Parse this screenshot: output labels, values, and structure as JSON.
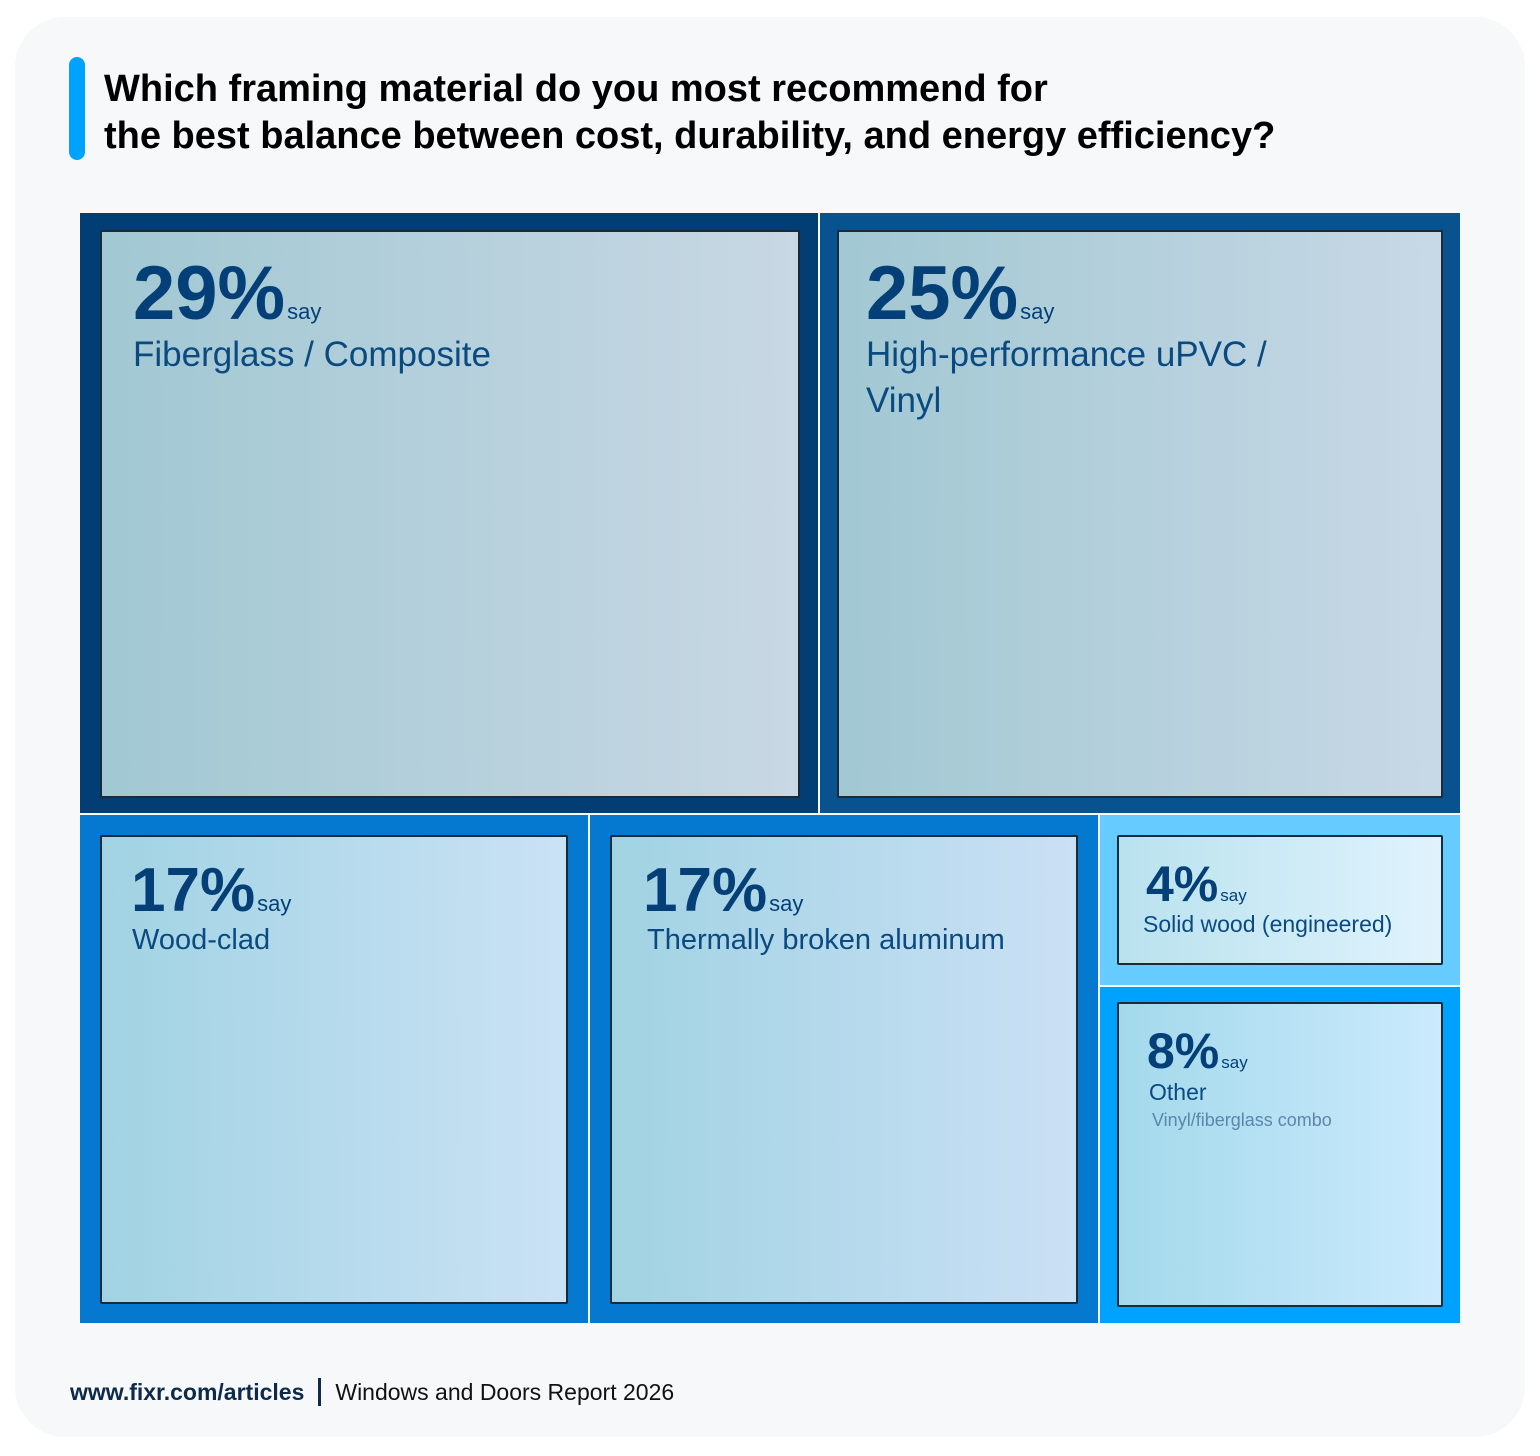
{
  "title_lines": [
    "Which framing material do you most recommend for",
    "the best balance between cost, durability, and energy efficiency?"
  ],
  "chart_data": {
    "type": "treemap",
    "unit": "%",
    "suffix": "say",
    "items": [
      {
        "label": "Fiberglass / Composite",
        "value": 29,
        "pct_text": "29%",
        "color": "#023d73"
      },
      {
        "label": "High-performance uPVC /\nVinyl",
        "value": 25,
        "pct_text": "25%",
        "color": "#07528f"
      },
      {
        "label": "Wood-clad",
        "value": 17,
        "pct_text": "17%",
        "color": "#0578cf"
      },
      {
        "label": "Thermally broken aluminum",
        "value": 17,
        "pct_text": "17%",
        "color": "#0578cf"
      },
      {
        "label": "Solid wood (engineered)",
        "value": 4,
        "pct_text": "4%",
        "color": "#66ccff"
      },
      {
        "label": "Other",
        "value": 8,
        "pct_text": "8%",
        "color": "#00a2ff",
        "note": "Vinyl/fiberglass combo"
      }
    ]
  },
  "footer": {
    "url": "www.fixr.com/articles",
    "source": "Windows and Doors Report 2026"
  },
  "colors": {
    "accent": "#00a2ff",
    "text_dark": "#053f78"
  }
}
